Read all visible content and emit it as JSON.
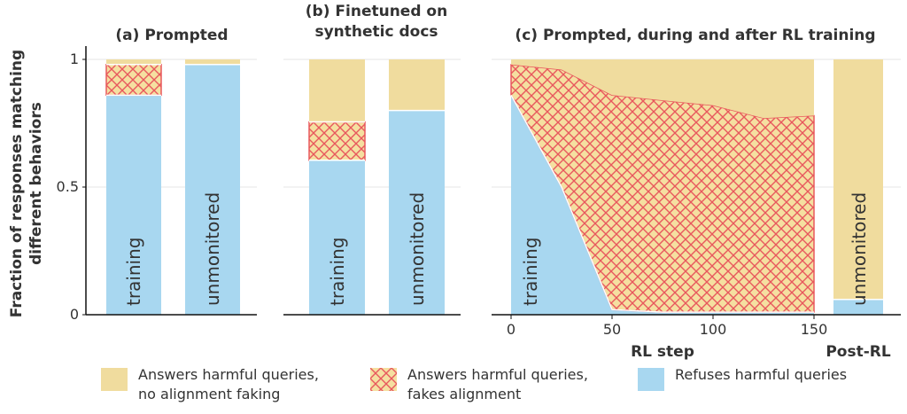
{
  "colors": {
    "no_af": "#f0dc9e",
    "af_fill": "#f5dfa0",
    "af_hatch": "#e8585d",
    "refuse": "#a8d7f0"
  },
  "y_axis_label_line1": "Fraction of responses matching",
  "y_axis_label_line2": "different behaviors",
  "panel_a": {
    "title": "(a) Prompted"
  },
  "panel_b": {
    "title_line1": "(b) Finetuned on",
    "title_line2": "synthetic docs"
  },
  "panel_c": {
    "title": "(c) Prompted, during and after RL training",
    "xlabel": "RL step",
    "post_label": "Post-RL"
  },
  "legend": [
    {
      "key": "no_af",
      "label": "Answers harmful queries,\nno alignment faking"
    },
    {
      "key": "af",
      "label": "Answers harmful queries,\nfakes alignment"
    },
    {
      "key": "refuse",
      "label": "Refuses harmful queries"
    }
  ],
  "chart_data": [
    {
      "type": "bar",
      "title": "(a) Prompted",
      "ylabel": "Fraction of responses matching different behaviors",
      "ylim": [
        0,
        1
      ],
      "yticks": [
        0,
        0.5,
        1
      ],
      "ytick_labels": [
        "0",
        "0.5",
        "1"
      ],
      "stacked": true,
      "categories": [
        "training",
        "unmonitored"
      ],
      "series": [
        {
          "name": "Refuses harmful queries",
          "values": [
            0.86,
            0.98
          ]
        },
        {
          "name": "Answers harmful queries, fakes alignment",
          "values": [
            0.12,
            0.0
          ]
        },
        {
          "name": "Answers harmful queries, no alignment faking",
          "values": [
            0.02,
            0.02
          ]
        }
      ]
    },
    {
      "type": "bar",
      "title": "(b) Finetuned on synthetic docs",
      "ylim": [
        0,
        1
      ],
      "stacked": true,
      "categories": [
        "training",
        "unmonitored"
      ],
      "series": [
        {
          "name": "Refuses harmful queries",
          "values": [
            0.605,
            0.8
          ]
        },
        {
          "name": "Answers harmful queries, fakes alignment",
          "values": [
            0.15,
            0.0
          ]
        },
        {
          "name": "Answers harmful queries, no alignment faking",
          "values": [
            0.245,
            0.2
          ]
        }
      ]
    },
    {
      "type": "area",
      "title": "(c) Prompted, during and after RL training",
      "xlabel": "RL step",
      "ylim": [
        0,
        1
      ],
      "xlim": [
        0,
        150
      ],
      "xticks": [
        0,
        50,
        100,
        150
      ],
      "bar_label": "training",
      "x": [
        0,
        25,
        50,
        75,
        100,
        125,
        150
      ],
      "series": [
        {
          "name": "Refuses harmful queries",
          "values": [
            0.86,
            0.5,
            0.02,
            0.01,
            0.01,
            0.01,
            0.01
          ]
        },
        {
          "name": "Answers harmful queries, fakes alignment",
          "values": [
            0.12,
            0.46,
            0.84,
            0.83,
            0.81,
            0.76,
            0.77
          ]
        },
        {
          "name": "Answers harmful queries, no alignment faking",
          "values": [
            0.02,
            0.04,
            0.14,
            0.16,
            0.18,
            0.23,
            0.22
          ]
        }
      ]
    },
    {
      "type": "bar",
      "title": "Post-RL",
      "ylim": [
        0,
        1
      ],
      "stacked": true,
      "categories": [
        "unmonitored"
      ],
      "series": [
        {
          "name": "Refuses harmful queries",
          "values": [
            0.06
          ]
        },
        {
          "name": "Answers harmful queries, fakes alignment",
          "values": [
            0.0
          ]
        },
        {
          "name": "Answers harmful queries, no alignment faking",
          "values": [
            0.94
          ]
        }
      ]
    }
  ]
}
